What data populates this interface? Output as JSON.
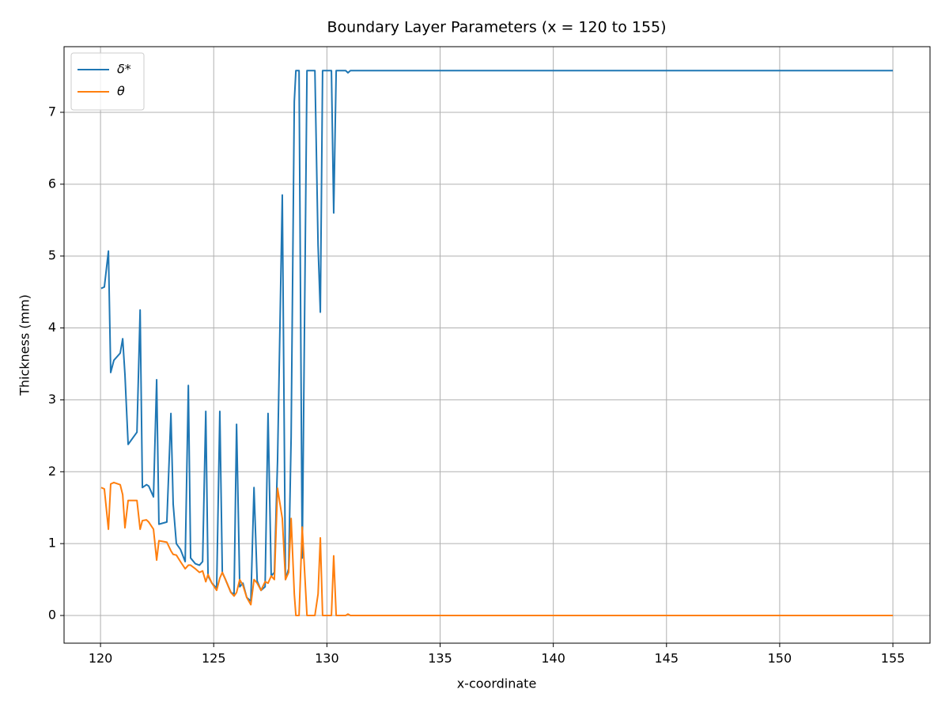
{
  "chart_data": {
    "type": "line",
    "title": "Boundary Layer Parameters (x = 120 to 155)",
    "x_label": "x-coordinate",
    "y_label": "Thickness (mm)",
    "x": [
      120.03,
      120.17,
      120.35,
      120.45,
      120.59,
      120.87,
      120.98,
      121.08,
      121.22,
      121.61,
      121.75,
      121.85,
      122.03,
      122.13,
      122.34,
      122.48,
      122.58,
      122.93,
      123.11,
      123.21,
      123.35,
      123.53,
      123.74,
      123.88,
      123.98,
      124.19,
      124.37,
      124.51,
      124.65,
      124.75,
      124.92,
      125.13,
      125.27,
      125.38,
      125.52,
      125.76,
      125.9,
      126.01,
      126.15,
      126.29,
      126.46,
      126.64,
      126.78,
      126.92,
      127.09,
      127.27,
      127.4,
      127.54,
      127.68,
      127.82,
      128.03,
      128.17,
      128.31,
      128.42,
      128.56,
      128.63,
      128.77,
      128.91,
      129.12,
      129.47,
      129.61,
      129.71,
      129.81,
      130.2,
      130.3,
      130.41,
      130.83,
      130.93,
      131.04,
      155.0
    ],
    "series": [
      {
        "name": "δ*",
        "color": "#1f77b4",
        "values": [
          4.55,
          4.57,
          5.07,
          3.38,
          3.55,
          3.65,
          3.85,
          3.35,
          2.38,
          2.55,
          4.25,
          1.78,
          1.82,
          1.8,
          1.65,
          3.28,
          1.27,
          1.3,
          2.81,
          1.55,
          1.0,
          0.92,
          0.75,
          3.2,
          0.8,
          0.72,
          0.7,
          0.75,
          2.84,
          0.55,
          0.45,
          0.38,
          2.84,
          0.6,
          0.5,
          0.32,
          0.3,
          2.66,
          0.4,
          0.45,
          0.25,
          0.2,
          1.78,
          0.48,
          0.35,
          0.4,
          2.81,
          0.55,
          0.6,
          2.15,
          5.85,
          0.5,
          0.65,
          2.48,
          7.15,
          7.58,
          7.58,
          0.8,
          7.58,
          7.58,
          5.15,
          4.22,
          7.58,
          7.58,
          5.6,
          7.58,
          7.58,
          7.55,
          7.58,
          7.58
        ]
      },
      {
        "name": "θ",
        "color": "#ff7f0e",
        "values": [
          1.78,
          1.76,
          1.2,
          1.83,
          1.85,
          1.82,
          1.68,
          1.22,
          1.6,
          1.6,
          1.2,
          1.32,
          1.33,
          1.3,
          1.2,
          0.77,
          1.04,
          1.02,
          0.9,
          0.85,
          0.84,
          0.75,
          0.65,
          0.7,
          0.7,
          0.65,
          0.6,
          0.62,
          0.47,
          0.57,
          0.45,
          0.35,
          0.52,
          0.6,
          0.5,
          0.32,
          0.27,
          0.32,
          0.5,
          0.42,
          0.25,
          0.15,
          0.5,
          0.45,
          0.35,
          0.47,
          0.45,
          0.55,
          0.5,
          1.77,
          1.35,
          0.5,
          0.6,
          1.35,
          0.3,
          0,
          0,
          1.23,
          0,
          0,
          0.3,
          1.08,
          0,
          0,
          0.83,
          0,
          0,
          0.02,
          0,
          0
        ]
      }
    ],
    "xlim": [
      118.39,
      156.64
    ],
    "ylim": [
      -0.385,
      7.913
    ],
    "xticks": [
      120,
      125,
      130,
      135,
      140,
      145,
      150,
      155
    ],
    "yticks": [
      0,
      1,
      2,
      3,
      4,
      5,
      6,
      7
    ],
    "grid": true,
    "legend": "upper left"
  }
}
